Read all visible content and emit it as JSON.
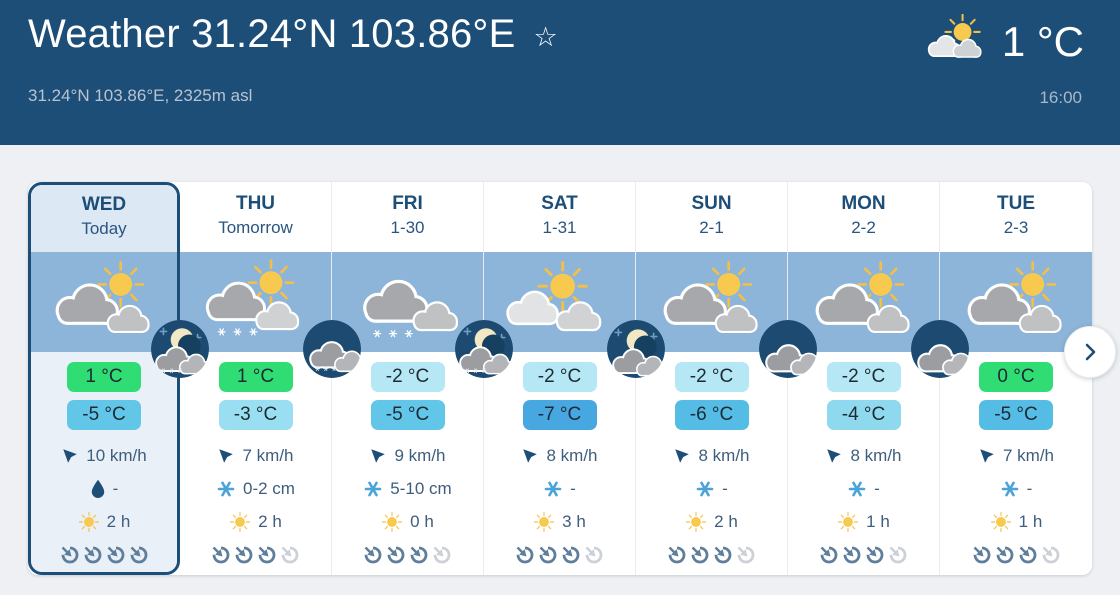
{
  "header": {
    "title": "Weather 31.24°N 103.86°E",
    "favorite_icon": "star-outline",
    "subtitle": "31.24°N 103.86°E, 2325m asl",
    "current_icon": "sun-with-clouds",
    "current_temp": "1 °C",
    "current_time": "16:00",
    "bg_color": "#1d4e78"
  },
  "forecast": {
    "band_color": "#8db5da",
    "scroll_next_icon": "chevron-right",
    "predictability_total": 4,
    "wind_icon": "wind-direction-arrow",
    "sun_icon": "sun",
    "days": [
      {
        "name": "WED",
        "sub": "Today",
        "selected": true,
        "icon": "sun-behind-clouds",
        "high": "1 °C",
        "high_bg": "#30dd74",
        "low": "-5 °C",
        "low_bg": "#62c6e9",
        "wind": "10 km/h",
        "precip_icon": "droplet",
        "precip": "-",
        "sun_hours": "2 h",
        "predictability": 4,
        "night_icon": "moon-clouds-snow"
      },
      {
        "name": "THU",
        "sub": "Tomorrow",
        "selected": false,
        "icon": "sun-clouds-snow",
        "high": "1 °C",
        "high_bg": "#30dd74",
        "low": "-3 °C",
        "low_bg": "#9adff1",
        "wind": "7 km/h",
        "precip_icon": "snowflake",
        "precip": "0-2 cm",
        "sun_hours": "2 h",
        "predictability": 3,
        "night_icon": "clouds-snow"
      },
      {
        "name": "FRI",
        "sub": "1-30",
        "selected": false,
        "icon": "clouds-snow",
        "high": "-2 °C",
        "high_bg": "#b5e8f4",
        "low": "-5 °C",
        "low_bg": "#62c6e9",
        "wind": "9 km/h",
        "precip_icon": "snowflake",
        "precip": "5-10 cm",
        "sun_hours": "0 h",
        "predictability": 3,
        "night_icon": "moon-clouds-snow"
      },
      {
        "name": "SAT",
        "sub": "1-31",
        "selected": false,
        "icon": "sun-with-clouds",
        "high": "-2 °C",
        "high_bg": "#b5e8f4",
        "low": "-7 °C",
        "low_bg": "#47a7e0",
        "wind": "8 km/h",
        "precip_icon": "snowflake",
        "precip": "-",
        "sun_hours": "3 h",
        "predictability": 3,
        "night_icon": "moon-clouds"
      },
      {
        "name": "SUN",
        "sub": "2-1",
        "selected": false,
        "icon": "sun-behind-clouds",
        "high": "-2 °C",
        "high_bg": "#b5e8f4",
        "low": "-6 °C",
        "low_bg": "#55bce5",
        "wind": "8 km/h",
        "precip_icon": "snowflake",
        "precip": "-",
        "sun_hours": "2 h",
        "predictability": 3,
        "night_icon": "clouds"
      },
      {
        "name": "MON",
        "sub": "2-2",
        "selected": false,
        "icon": "sun-behind-clouds",
        "high": "-2 °C",
        "high_bg": "#b5e8f4",
        "low": "-4 °C",
        "low_bg": "#8fd9ee",
        "wind": "8 km/h",
        "precip_icon": "snowflake",
        "precip": "-",
        "sun_hours": "1 h",
        "predictability": 3,
        "night_icon": "clouds"
      },
      {
        "name": "TUE",
        "sub": "2-3",
        "selected": false,
        "icon": "sun-behind-clouds",
        "high": "0 °C",
        "high_bg": "#30dd74",
        "low": "-5 °C",
        "low_bg": "#55bce5",
        "wind": "7 km/h",
        "precip_icon": "snowflake",
        "precip": "-",
        "sun_hours": "1 h",
        "predictability": 3,
        "night_icon": "clouds"
      }
    ]
  }
}
